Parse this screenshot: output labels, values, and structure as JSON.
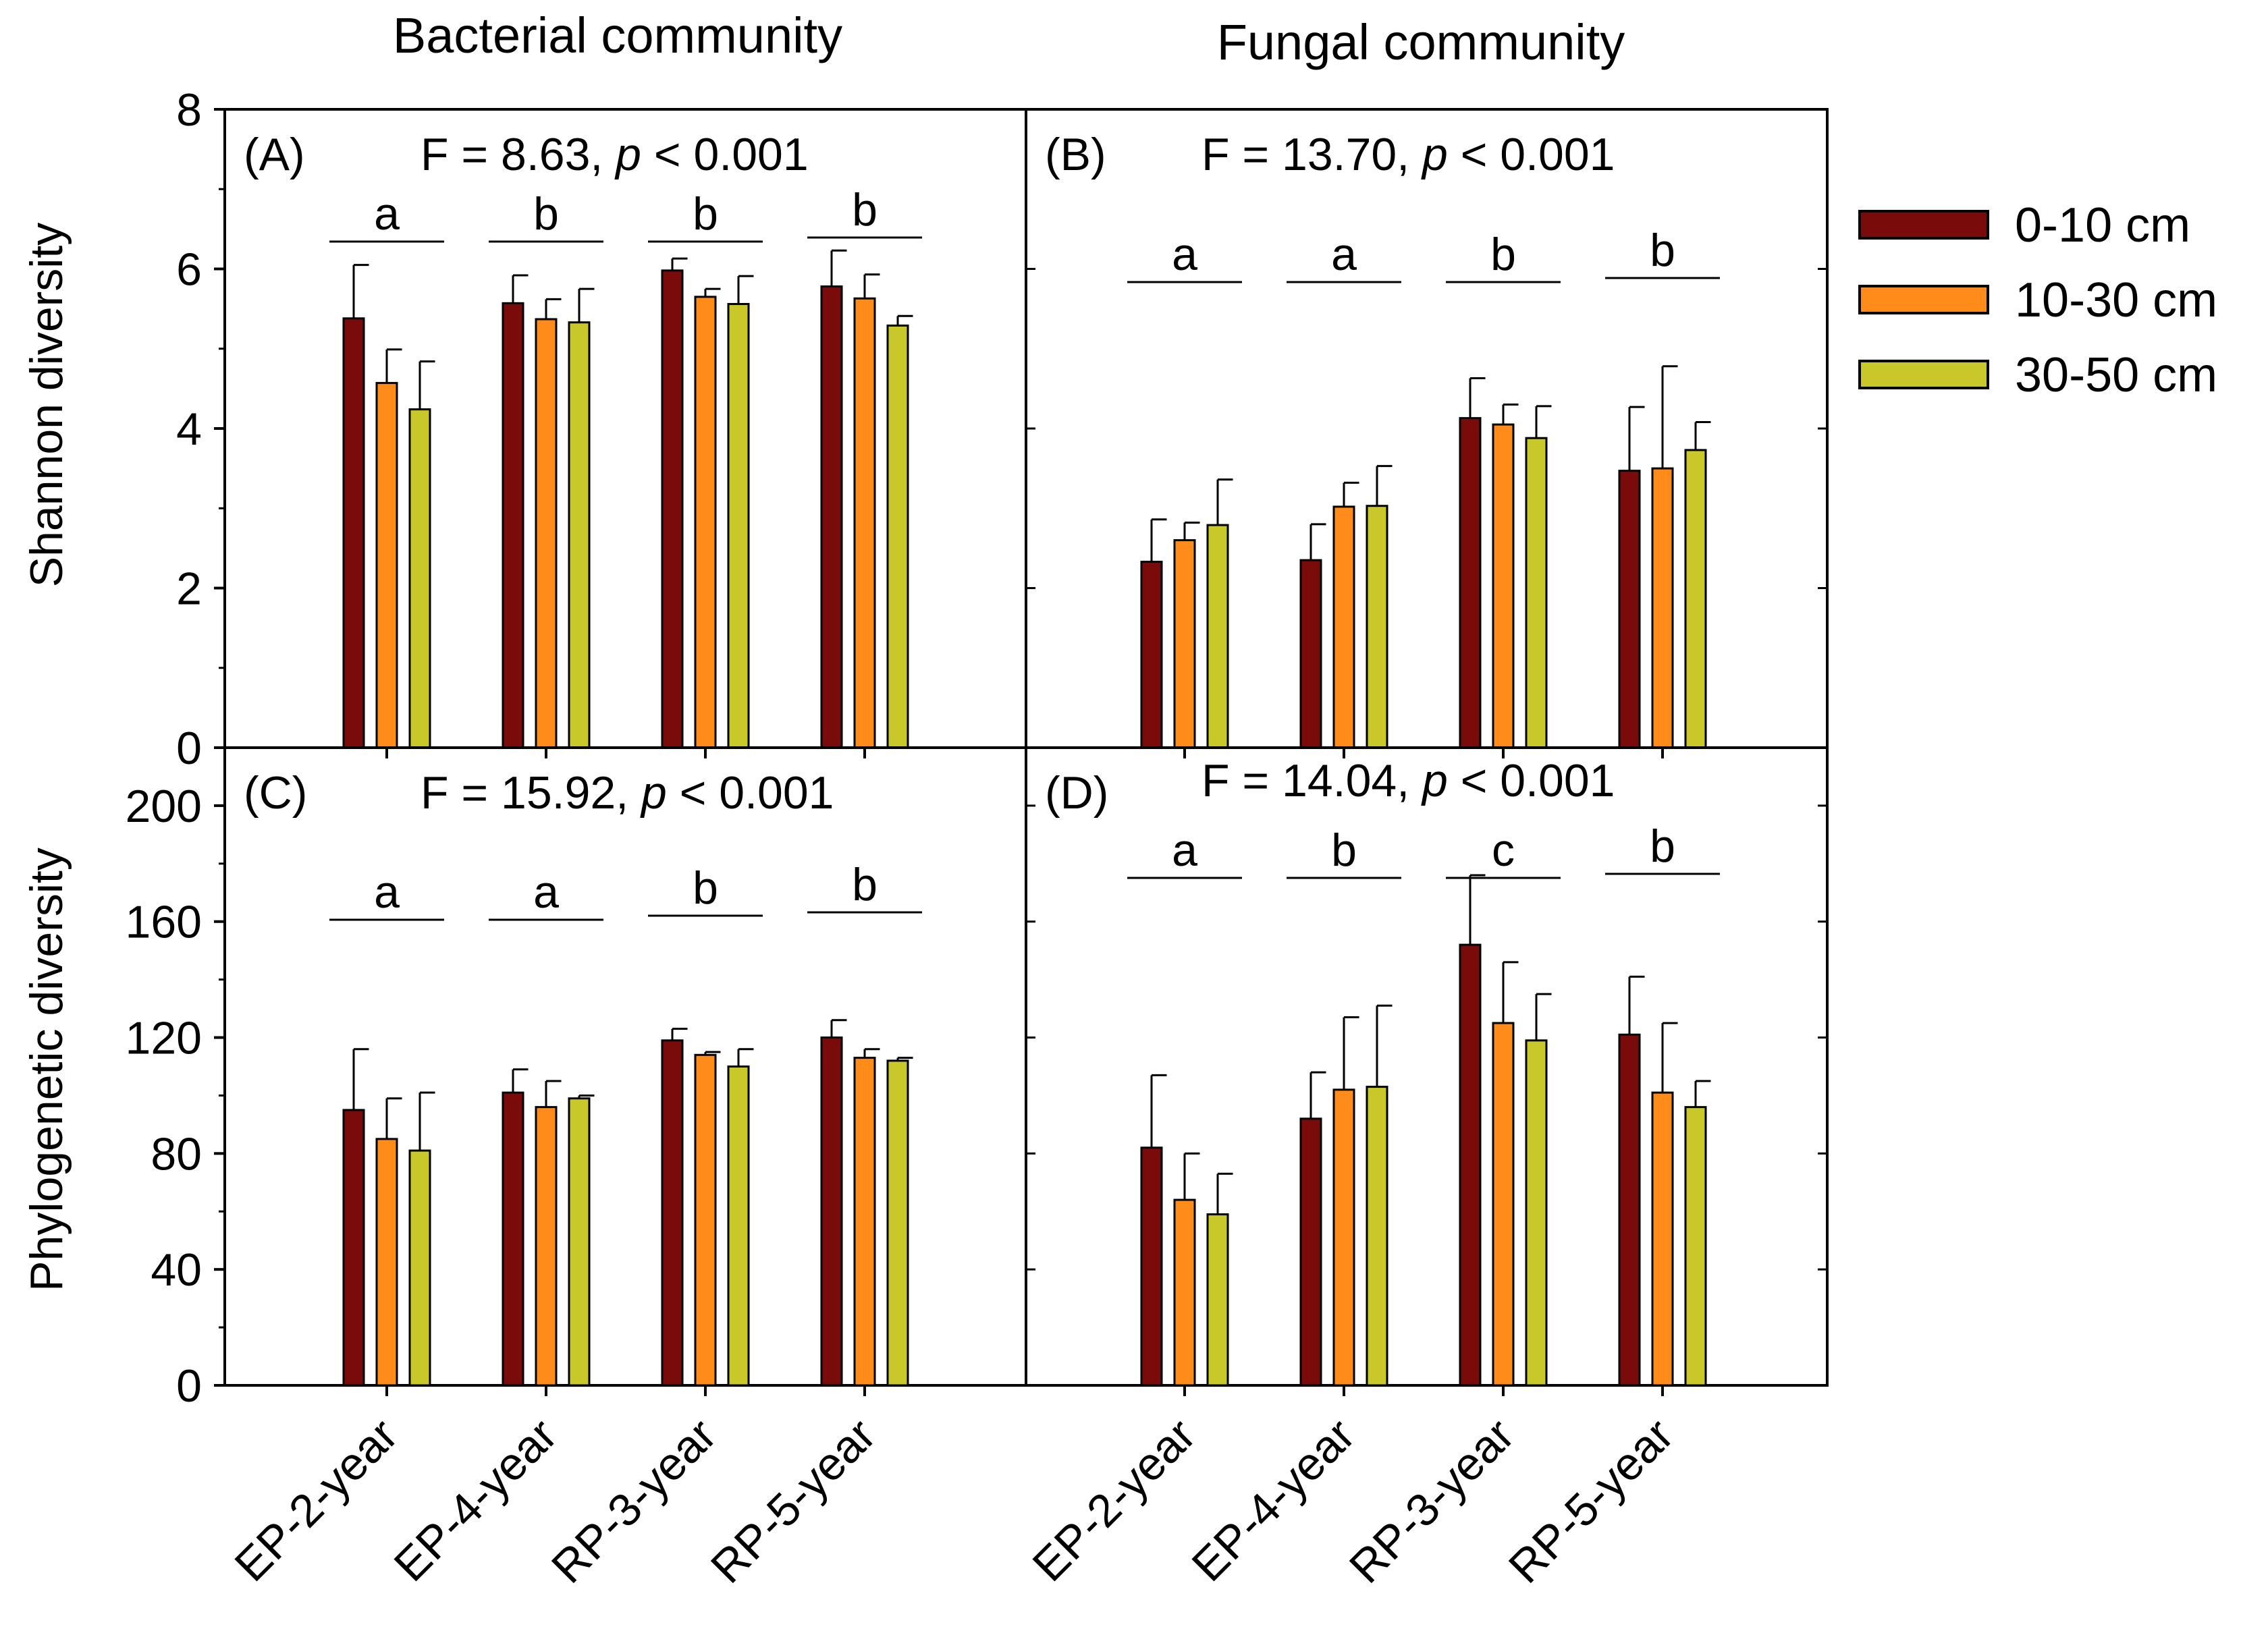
{
  "figure": {
    "column_titles": [
      "Bacterial community",
      "Fungal community"
    ],
    "ylabels": [
      "Shannon diversity",
      "Phylogenetic diversity"
    ],
    "legend": {
      "entries": [
        {
          "label": "0-10 cm",
          "color": "#7a0b0b"
        },
        {
          "label": "10-30 cm",
          "color": "#ff8c1a"
        },
        {
          "label": "30-50 cm",
          "color": "#c8c82a"
        }
      ]
    }
  },
  "chart_data": [
    {
      "type": "bar",
      "panel_label": "(A)",
      "stat_prefix": "F = 8.63,",
      "stat_p": "p",
      "stat_suffix": "< 0.001",
      "categories": [
        "EP-2-year",
        "EP-4-year",
        "RP-3-year",
        "RP-5-year"
      ],
      "series": [
        {
          "name": "0-10 cm",
          "values": [
            5.38,
            5.57,
            5.98,
            5.78
          ],
          "errors": [
            0.67,
            0.35,
            0.15,
            0.45
          ]
        },
        {
          "name": "10-30 cm",
          "values": [
            4.57,
            5.37,
            5.65,
            5.63
          ],
          "errors": [
            0.42,
            0.25,
            0.1,
            0.3
          ]
        },
        {
          "name": "30-50 cm",
          "values": [
            4.24,
            5.33,
            5.56,
            5.29
          ],
          "errors": [
            0.6,
            0.42,
            0.35,
            0.12
          ]
        }
      ],
      "significance_letters": [
        "a",
        "b",
        "b",
        "b"
      ],
      "ylim": [
        0,
        8
      ],
      "yticks": [
        0,
        2,
        4,
        6,
        8
      ]
    },
    {
      "type": "bar",
      "panel_label": "(B)",
      "stat_prefix": "F = 13.70,",
      "stat_p": "p",
      "stat_suffix": "< 0.001",
      "categories": [
        "EP-2-year",
        "EP-4-year",
        "RP-3-year",
        "RP-5-year"
      ],
      "series": [
        {
          "name": "0-10 cm",
          "values": [
            2.33,
            2.35,
            4.13,
            3.47
          ],
          "errors": [
            0.53,
            0.45,
            0.5,
            0.8
          ]
        },
        {
          "name": "10-30 cm",
          "values": [
            2.6,
            3.02,
            4.05,
            3.5
          ],
          "errors": [
            0.22,
            0.3,
            0.25,
            1.28
          ]
        },
        {
          "name": "30-50 cm",
          "values": [
            2.79,
            3.03,
            3.88,
            3.73
          ],
          "errors": [
            0.57,
            0.5,
            0.4,
            0.35
          ]
        }
      ],
      "significance_letters": [
        "a",
        "a",
        "b",
        "b"
      ],
      "ylim": [
        0,
        8
      ],
      "yticks": [
        0,
        2,
        4,
        6,
        8
      ]
    },
    {
      "type": "bar",
      "panel_label": "(C)",
      "stat_prefix": "F = 15.92,",
      "stat_p": "p",
      "stat_suffix": "< 0.001",
      "categories": [
        "EP-2-year",
        "EP-4-year",
        "RP-3-year",
        "RP-5-year"
      ],
      "series": [
        {
          "name": "0-10 cm",
          "values": [
            95,
            101,
            119,
            120
          ],
          "errors": [
            21,
            8,
            4,
            6
          ]
        },
        {
          "name": "10-30 cm",
          "values": [
            85,
            96,
            114,
            113
          ],
          "errors": [
            14,
            9,
            1,
            3
          ]
        },
        {
          "name": "30-50 cm",
          "values": [
            81,
            99,
            110,
            112
          ],
          "errors": [
            20,
            1,
            6,
            1
          ]
        }
      ],
      "significance_letters": [
        "a",
        "a",
        "b",
        "b"
      ],
      "ylim": [
        0,
        220
      ],
      "yticks": [
        0,
        40,
        80,
        120,
        160,
        200
      ]
    },
    {
      "type": "bar",
      "panel_label": "(D)",
      "stat_prefix": "F = 14.04,",
      "stat_p": "p",
      "stat_suffix": "< 0.001",
      "categories": [
        "EP-2-year",
        "EP-4-year",
        "RP-3-year",
        "RP-5-year"
      ],
      "series": [
        {
          "name": "0-10 cm",
          "values": [
            82,
            92,
            152,
            121
          ],
          "errors": [
            25,
            16,
            24,
            20
          ]
        },
        {
          "name": "10-30 cm",
          "values": [
            64,
            102,
            125,
            101
          ],
          "errors": [
            16,
            25,
            21,
            24
          ]
        },
        {
          "name": "30-50 cm",
          "values": [
            59,
            103,
            119,
            96
          ],
          "errors": [
            14,
            28,
            16,
            9
          ]
        }
      ],
      "significance_letters": [
        "a",
        "b",
        "c",
        "b"
      ],
      "ylim": [
        0,
        220
      ],
      "yticks": [
        0,
        40,
        80,
        120,
        160,
        200
      ]
    }
  ]
}
